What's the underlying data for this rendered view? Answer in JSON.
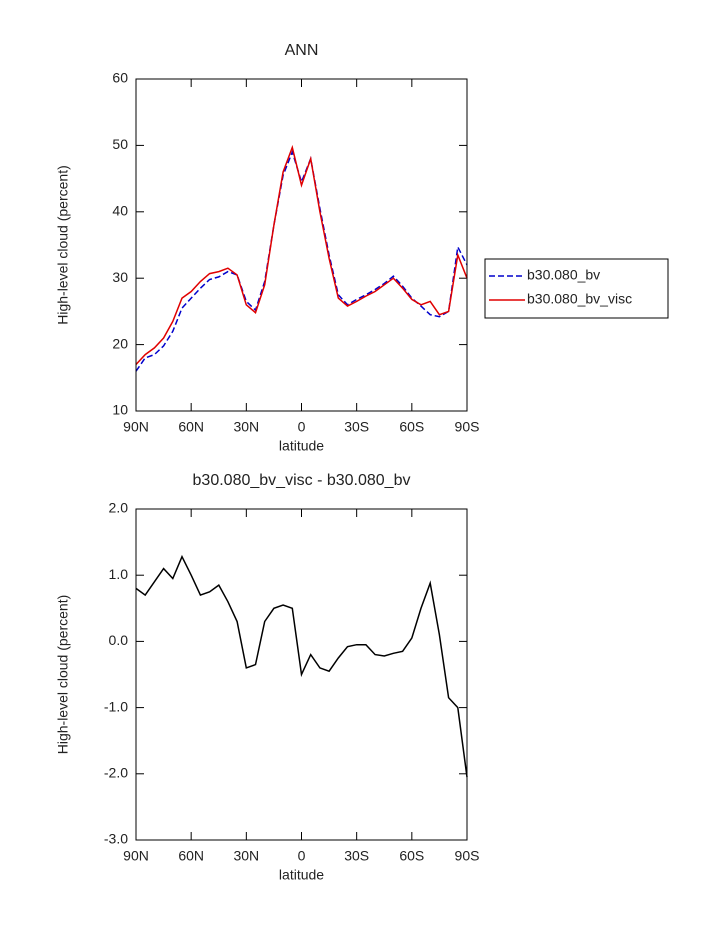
{
  "chart_data": [
    {
      "type": "line",
      "title": "ANN",
      "xlabel": "latitude",
      "ylabel": "High-level cloud (percent)",
      "x": [
        90,
        85,
        80,
        75,
        70,
        65,
        60,
        55,
        50,
        45,
        40,
        35,
        30,
        25,
        20,
        15,
        10,
        5,
        0,
        -5,
        -10,
        -15,
        -20,
        -25,
        -30,
        -35,
        -40,
        -45,
        -50,
        -55,
        -60,
        -65,
        -70,
        -75,
        -80,
        -85,
        -90
      ],
      "series": [
        {
          "name": "b30.080_bv",
          "color": "#0000cc",
          "line_style": "dashed",
          "values": [
            16,
            18,
            18.5,
            19.8,
            22,
            25.5,
            27,
            28.5,
            29.8,
            30.2,
            31,
            30.5,
            26.5,
            25.2,
            29.5,
            38,
            45.5,
            49,
            44.5,
            48,
            40.5,
            33.5,
            27.5,
            26,
            26.8,
            27.5,
            28.3,
            29.2,
            30.3,
            28.8,
            27,
            25.8,
            24.5,
            24.2,
            25,
            34.7,
            32
          ]
        },
        {
          "name": "b30.080_bv_visc",
          "color": "#e00000",
          "line_style": "solid",
          "values": [
            17,
            18.5,
            19.5,
            21,
            23.5,
            27,
            28,
            29.5,
            30.7,
            31,
            31.5,
            30.5,
            26,
            24.8,
            29,
            38,
            46,
            49.7,
            44,
            48,
            40,
            33,
            27,
            25.8,
            26.5,
            27.3,
            28,
            29,
            30,
            28.5,
            26.8,
            26,
            26.5,
            24.5,
            25,
            33.5,
            30
          ]
        }
      ],
      "xlim": [
        90,
        -90
      ],
      "xticks": [
        {
          "value": 90,
          "label": "90N"
        },
        {
          "value": 60,
          "label": "60N"
        },
        {
          "value": 30,
          "label": "30N"
        },
        0,
        {
          "value": -30,
          "label": "30S"
        },
        {
          "value": -60,
          "label": "60S"
        },
        {
          "value": -90,
          "label": "90S"
        }
      ],
      "ylim": [
        10,
        60
      ],
      "yticks": [
        10,
        20,
        30,
        40,
        50,
        60
      ],
      "legend": "right"
    },
    {
      "type": "line",
      "title": "b30.080_bv_visc - b30.080_bv",
      "xlabel": "latitude",
      "ylabel": "High-level cloud (percent)",
      "x": [
        90,
        85,
        80,
        75,
        70,
        65,
        60,
        55,
        50,
        45,
        40,
        35,
        30,
        25,
        20,
        15,
        10,
        5,
        0,
        -5,
        -10,
        -15,
        -20,
        -25,
        -30,
        -35,
        -40,
        -45,
        -50,
        -55,
        -60,
        -65,
        -70,
        -75,
        -80,
        -85,
        -90
      ],
      "series": [
        {
          "color": "#000000",
          "line_style": "solid",
          "values": [
            0.8,
            0.7,
            0.9,
            1.1,
            0.95,
            1.28,
            1.0,
            0.7,
            0.75,
            0.85,
            0.6,
            0.3,
            -0.4,
            -0.35,
            0.3,
            0.5,
            0.55,
            0.5,
            -0.5,
            -0.2,
            -0.4,
            -0.45,
            -0.25,
            -0.08,
            -0.05,
            -0.05,
            -0.2,
            -0.22,
            -0.18,
            -0.15,
            0.05,
            0.5,
            0.88,
            0.1,
            -0.85,
            -1.0,
            -2.05
          ]
        }
      ],
      "xlim": [
        90,
        -90
      ],
      "xticks": [
        {
          "value": 90,
          "label": "90N"
        },
        {
          "value": 60,
          "label": "60N"
        },
        {
          "value": 30,
          "label": "30N"
        },
        0,
        {
          "value": -30,
          "label": "30S"
        },
        {
          "value": -60,
          "label": "60S"
        },
        {
          "value": -90,
          "label": "90S"
        }
      ],
      "ylim": [
        -3,
        2
      ],
      "yticks": [
        {
          "value": -3,
          "label": "-3.0"
        },
        {
          "value": -2,
          "label": "-2.0"
        },
        {
          "value": -1,
          "label": "-1.0"
        },
        {
          "value": 0,
          "label": "0.0"
        },
        {
          "value": 1,
          "label": "1.0"
        },
        {
          "value": 2,
          "label": "2.0"
        }
      ]
    }
  ]
}
